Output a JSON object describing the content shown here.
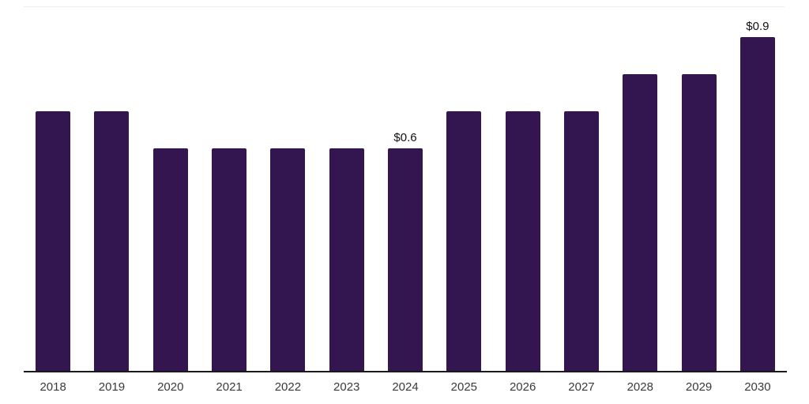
{
  "chart_data": {
    "type": "bar",
    "categories": [
      "2018",
      "2019",
      "2020",
      "2021",
      "2022",
      "2023",
      "2024",
      "2025",
      "2026",
      "2027",
      "2028",
      "2029",
      "2030"
    ],
    "values": [
      0.7,
      0.7,
      0.6,
      0.6,
      0.6,
      0.6,
      0.6,
      0.7,
      0.7,
      0.7,
      0.8,
      0.8,
      0.9
    ],
    "bar_labels": [
      "",
      "",
      "",
      "",
      "",
      "",
      "$0.6",
      "",
      "",
      "",
      "",
      "",
      "$0.9"
    ],
    "title": "",
    "xlabel": "",
    "ylabel": "",
    "ylim": [
      0,
      1.0
    ],
    "grid": "top-line-only",
    "legend": "none",
    "colors": {
      "bar": "#33154F",
      "axis_line": "#1a1a1a",
      "gridline": "#ececec",
      "tick_label": "#3a3a3a",
      "data_label": "#111111"
    }
  }
}
